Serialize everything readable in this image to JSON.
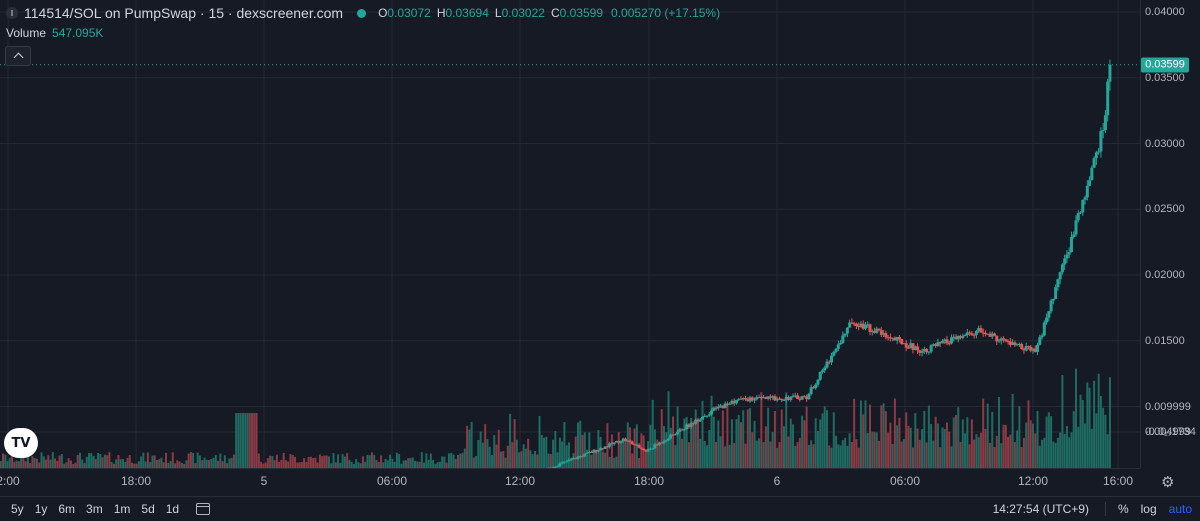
{
  "legend": {
    "title": "114514/SOL on PumpSwap · 15 · dexscreener.com",
    "o_key": "O",
    "o_val": "0.03072",
    "h_key": "H",
    "h_val": "0.03694",
    "l_key": "L",
    "l_val": "0.03022",
    "c_key": "C",
    "c_val": "0.03599",
    "change": "0.005270 (+17.15%)"
  },
  "volume_legend": {
    "label": "Volume",
    "value": "547.095K"
  },
  "logo_text": "TV",
  "colors": {
    "up": "#26a69a",
    "down": "#ef5350",
    "up_volume": "#1f6b62",
    "down_volume": "#8c3a44",
    "background": "#161a25",
    "grid": "#242833",
    "accent": "#2962ff"
  },
  "price_axis": {
    "labels": [
      "0.04000",
      "0.03500",
      "0.03000",
      "0.02500",
      "0.02000",
      "0.01500",
      "0.009999",
      "0.004999",
      "-0.0₁₇1734"
    ],
    "last_price": "0.03599"
  },
  "time_axis": {
    "labels": [
      "2:00",
      "18:00",
      "5",
      "06:00",
      "12:00",
      "18:00",
      "6",
      "06:00",
      "12:00",
      "16:00"
    ]
  },
  "settings_icon": "gear-icon",
  "bottom_bar": {
    "timeframes": [
      "5y",
      "1y",
      "6m",
      "3m",
      "1m",
      "5d",
      "1d"
    ],
    "calendar_icon": "calendar-range-icon",
    "clock": "14:27:54 (UTC+9)",
    "percent": "%",
    "log": "log",
    "auto": "auto"
  },
  "chart_data": {
    "type": "candlestick",
    "interval": "15m",
    "y_min": 0.0,
    "y_max": 0.04,
    "x_start": "day 4 12:00",
    "x_end": "day 6 16:00",
    "last_close": 0.03599,
    "close_path": [
      [
        "4 13:00",
        0.00045
      ],
      [
        "4 20:00",
        0.0005
      ],
      [
        "5 00:00",
        0.0006
      ],
      [
        "5 00:30",
        0.0042
      ],
      [
        "5 04:00",
        0.0017
      ],
      [
        "5 09:00",
        0.0035
      ],
      [
        "5 11:00",
        0.0043
      ],
      [
        "5 13:00",
        0.0048
      ],
      [
        "5 16:00",
        0.0068
      ],
      [
        "5 17:00",
        0.0075
      ],
      [
        "5 18:00",
        0.0066
      ],
      [
        "5 21:00",
        0.0098
      ],
      [
        "5 22:00",
        0.0105
      ],
      [
        "6 01:00",
        0.0107
      ],
      [
        "6 03:00",
        0.0165
      ],
      [
        "6 06:00",
        0.0142
      ],
      [
        "6 08:30",
        0.0157
      ],
      [
        "6 10:00",
        0.0147
      ],
      [
        "6 11:00",
        0.0141
      ],
      [
        "6 12:00",
        0.0195
      ],
      [
        "6 13:00",
        0.025
      ],
      [
        "6 14:00",
        0.0314
      ],
      [
        "6 14:15",
        0.03599
      ]
    ],
    "volume_note": "volume bars shown in bottom band, highest near day 6 14:00"
  }
}
